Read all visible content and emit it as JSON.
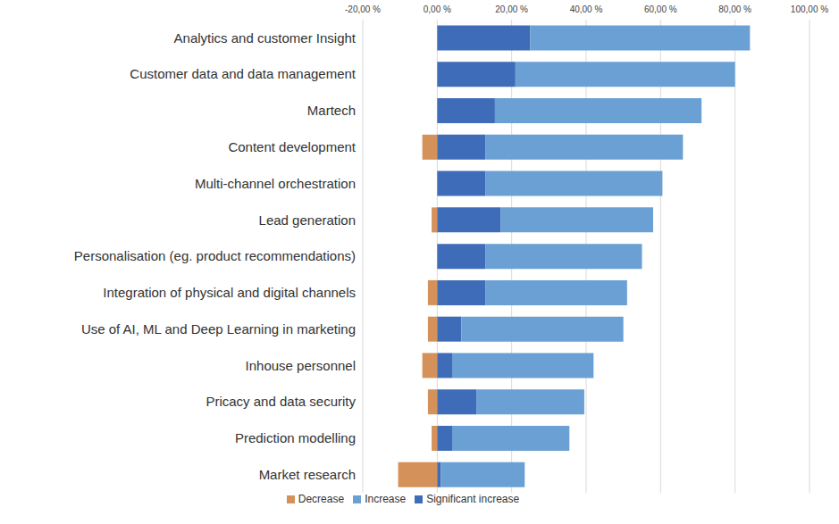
{
  "chart_data": {
    "type": "bar",
    "orientation": "horizontal",
    "stacked": true,
    "grid": true,
    "legend": "bottom",
    "categories": [
      "Analytics and customer Insight",
      "Customer data and data management",
      "Martech",
      "Content development",
      "Multi-channel orchestration",
      "Lead generation",
      "Personalisation (eg. product recommendations)",
      "Integration of physical and digital channels",
      "Use of AI, ML and Deep Learning in marketing",
      "Inhouse personnel",
      "Pricacy and data security",
      "Prediction modelling",
      "Market research"
    ],
    "series": [
      {
        "name": "Decrease",
        "color": "#d4915a",
        "values": [
          0,
          0,
          0,
          -4,
          0,
          -1.5,
          0,
          -2.5,
          -2.5,
          -4,
          -2.5,
          -1.5,
          -10.5
        ]
      },
      {
        "name": "Significant increase",
        "color": "#3f6cb8",
        "values": [
          25,
          21,
          15.5,
          13,
          13,
          17,
          13,
          13,
          6.5,
          4,
          10.5,
          4,
          1
        ]
      },
      {
        "name": "Increase",
        "color": "#6aa0d4",
        "values": [
          59,
          59,
          55.5,
          53,
          47.5,
          41,
          42,
          38,
          43.5,
          38,
          29,
          31.5,
          22.5
        ]
      }
    ],
    "xlim": [
      -20,
      100
    ],
    "xticks": [
      {
        "value": -20,
        "label": "-20,00 %"
      },
      {
        "value": 0,
        "label": "0,00 %"
      },
      {
        "value": 20,
        "label": "20,00 %"
      },
      {
        "value": 40,
        "label": "40,00 %"
      },
      {
        "value": 60,
        "label": "60,00 %"
      },
      {
        "value": 80,
        "label": "80,00 %"
      },
      {
        "value": 100,
        "label": "100,00 %"
      }
    ]
  }
}
